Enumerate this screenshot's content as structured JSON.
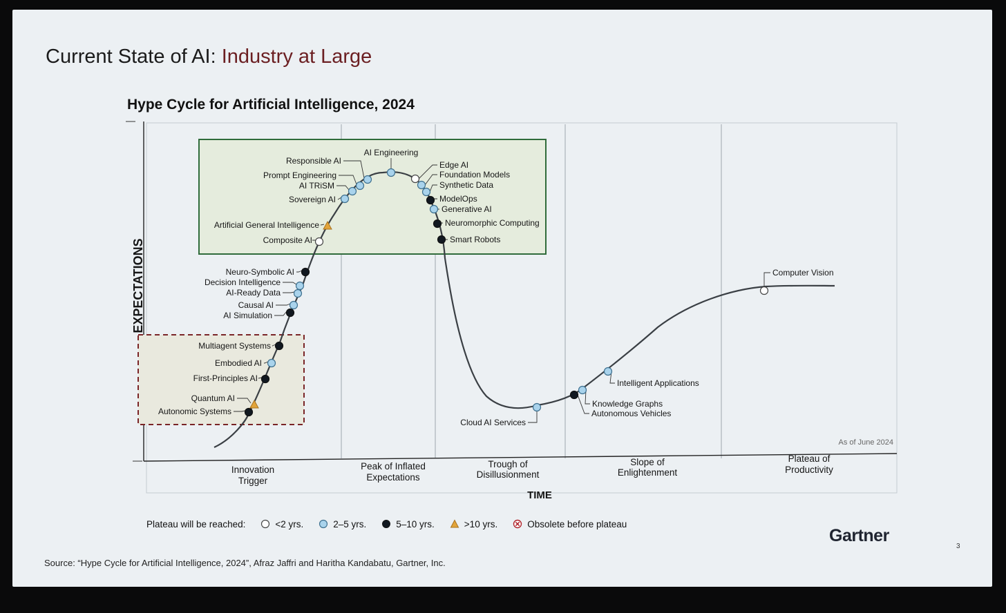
{
  "slide": {
    "title_prefix": "Current State of AI: ",
    "title_accent": "Industry at Large",
    "source": "Source: “Hype Cycle for Artificial Intelligence, 2024”, Afraz Jaffri and Haritha Kandabatu, Gartner, Inc.",
    "logo": "Gartner",
    "page_number": "3",
    "colors": {
      "accent": "#6b1f22",
      "box_green": "#2f6b3a",
      "box_red": "#7a2426",
      "curve": "#3a3f44"
    }
  },
  "diagram": {
    "title": "Hype Cycle for Artificial Intelligence, 2024",
    "y_axis_label": "EXPECTATIONS",
    "x_axis_label": "TIME",
    "as_of": "As of June 2024",
    "phases": [
      {
        "line1": "Innovation",
        "line2": "Trigger"
      },
      {
        "line1": "Peak of Inflated",
        "line2": "Expectations"
      },
      {
        "line1": "Trough of",
        "line2": "Disillusionment"
      },
      {
        "line1": "Slope of",
        "line2": "Enlightenment"
      },
      {
        "line1": "Plateau of",
        "line2": "Productivity"
      }
    ],
    "technologies": [
      {
        "label": "Autonomic Systems",
        "status": "5-10"
      },
      {
        "label": "Quantum AI",
        "status": ">10"
      },
      {
        "label": "First-Principles AI",
        "status": "5-10"
      },
      {
        "label": "Embodied AI",
        "status": "2-5"
      },
      {
        "label": "Multiagent Systems",
        "status": "5-10"
      },
      {
        "label": "AI Simulation",
        "status": "5-10"
      },
      {
        "label": "Causal AI",
        "status": "2-5"
      },
      {
        "label": "AI-Ready Data",
        "status": "2-5"
      },
      {
        "label": "Decision Intelligence",
        "status": "2-5"
      },
      {
        "label": "Neuro-Symbolic AI",
        "status": "5-10"
      },
      {
        "label": "Composite AI",
        "status": "<2"
      },
      {
        "label": "Artificial General Intelligence",
        "status": ">10"
      },
      {
        "label": "Sovereign AI",
        "status": "2-5"
      },
      {
        "label": "AI TRiSM",
        "status": "2-5"
      },
      {
        "label": "Prompt Engineering",
        "status": "2-5"
      },
      {
        "label": "Responsible AI",
        "status": "2-5"
      },
      {
        "label": "AI Engineering",
        "status": "2-5"
      },
      {
        "label": "Edge AI",
        "status": "<2"
      },
      {
        "label": "Foundation Models",
        "status": "2-5"
      },
      {
        "label": "Synthetic Data",
        "status": "2-5"
      },
      {
        "label": "ModelOps",
        "status": "5-10"
      },
      {
        "label": "Generative AI",
        "status": "2-5"
      },
      {
        "label": "Neuromorphic Computing",
        "status": "5-10"
      },
      {
        "label": "Smart Robots",
        "status": "5-10"
      },
      {
        "label": "Cloud AI Services",
        "status": "2-5"
      },
      {
        "label": "Autonomous Vehicles",
        "status": "5-10"
      },
      {
        "label": "Knowledge Graphs",
        "status": "2-5"
      },
      {
        "label": "Intelligent Applications",
        "status": "2-5"
      },
      {
        "label": "Computer Vision",
        "status": "<2"
      }
    ]
  },
  "legend": {
    "title": "Plateau will be reached:",
    "items": [
      {
        "label": "<2 yrs.",
        "marker": "open-circle"
      },
      {
        "label": "2–5 yrs.",
        "marker": "light-blue-circle"
      },
      {
        "label": "5–10 yrs.",
        "marker": "black-circle"
      },
      {
        "label": ">10 yrs.",
        "marker": "orange-triangle"
      },
      {
        "label": "Obsolete before plateau",
        "marker": "crossed-circle"
      }
    ]
  }
}
